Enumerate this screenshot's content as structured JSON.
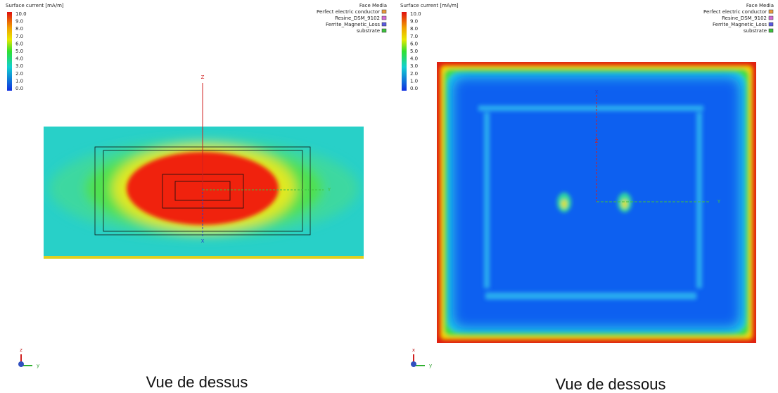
{
  "panels": [
    {
      "colorbar": {
        "title": "Surface current [mA/m]",
        "ticks": [
          "10.0",
          "9.0",
          "8.0",
          "7.0",
          "6.0",
          "5.0",
          "4.0",
          "3.0",
          "2.0",
          "1.0",
          "0.0"
        ]
      },
      "legend": {
        "title": "Face Media",
        "items": [
          {
            "label": "Perfect electric conductor",
            "color": "#e89a3c"
          },
          {
            "label": "Resine_DSM_9102",
            "color": "#d46ad4"
          },
          {
            "label": "Ferrite_Magnetic_Loss",
            "color": "#5a5ae0"
          },
          {
            "label": "substrate",
            "color": "#3cc03c"
          }
        ]
      },
      "axes": [
        "Z",
        "X",
        "Y"
      ],
      "triad": [
        "z",
        "y"
      ],
      "caption": "Vue de dessus"
    },
    {
      "colorbar": {
        "title": "Surface current [mA/m]",
        "ticks": [
          "10.0",
          "9.0",
          "8.0",
          "7.0",
          "6.0",
          "5.0",
          "4.0",
          "3.0",
          "2.0",
          "1.0",
          "0.0"
        ]
      },
      "legend": {
        "title": "Face Media",
        "items": [
          {
            "label": "Perfect electric conductor",
            "color": "#e89a3c"
          },
          {
            "label": "Resine_DSM_9102",
            "color": "#d46ad4"
          },
          {
            "label": "Ferrite_Magnetic_Loss",
            "color": "#5a5ae0"
          },
          {
            "label": "substrate",
            "color": "#3cc03c"
          }
        ]
      },
      "axes": [
        "Z",
        "X",
        "Y"
      ],
      "triad": [
        "x",
        "y"
      ],
      "caption": "Vue de dessous"
    }
  ]
}
